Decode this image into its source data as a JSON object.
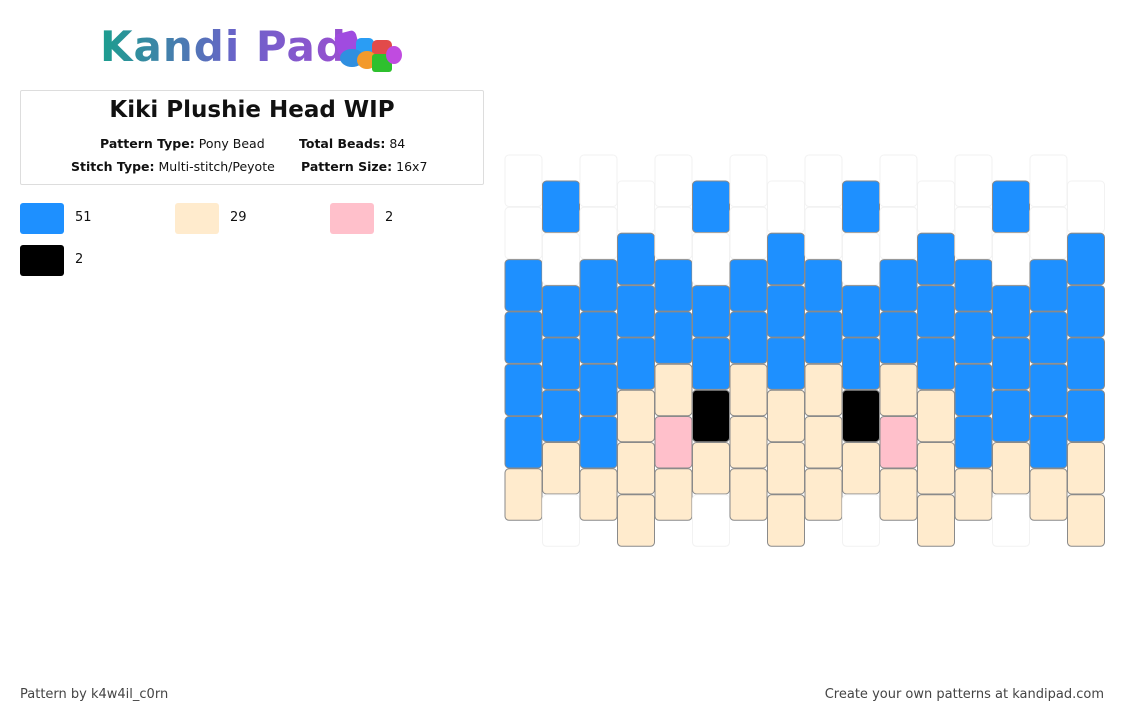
{
  "logo": "Kandi Pad",
  "title": "Kiki Plushie Head WIP",
  "info": [
    {
      "label": "Pattern Type:",
      "value": "Pony Bead"
    },
    {
      "label": "Total Beads:",
      "value": 84
    },
    {
      "label": "Stitch Type:",
      "value": "Multi-stitch/Peyote"
    },
    {
      "label": "Pattern Size:",
      "value": "16x7"
    }
  ],
  "palette": [
    {
      "color": "#1e90ff",
      "count": 51
    },
    {
      "color": "#ffebcd",
      "count": 29
    },
    {
      "color": "#ffc0cb",
      "count": 2
    },
    {
      "color": "#000000",
      "count": 2
    }
  ],
  "beads": [
    [
      null,
      null,
      "#1e90ff",
      "#1e90ff",
      "#1e90ff",
      "#1e90ff",
      "#ffebcd"
    ],
    [
      "#1e90ff",
      null,
      "#1e90ff",
      "#1e90ff",
      "#1e90ff",
      "#ffebcd",
      null
    ],
    [
      null,
      null,
      "#1e90ff",
      "#1e90ff",
      "#1e90ff",
      "#1e90ff",
      "#ffebcd"
    ],
    [
      null,
      "#1e90ff",
      "#1e90ff",
      "#1e90ff",
      "#ffebcd",
      "#ffebcd",
      "#ffebcd"
    ],
    [
      null,
      null,
      "#1e90ff",
      "#1e90ff",
      "#ffebcd",
      "#ffc0cb",
      "#ffebcd"
    ],
    [
      "#1e90ff",
      null,
      "#1e90ff",
      "#1e90ff",
      "#000000",
      "#ffebcd",
      null
    ],
    [
      null,
      null,
      "#1e90ff",
      "#1e90ff",
      "#ffebcd",
      "#ffebcd",
      "#ffebcd"
    ],
    [
      null,
      "#1e90ff",
      "#1e90ff",
      "#1e90ff",
      "#ffebcd",
      "#ffebcd",
      "#ffebcd"
    ],
    [
      null,
      null,
      "#1e90ff",
      "#1e90ff",
      "#ffebcd",
      "#ffebcd",
      "#ffebcd"
    ],
    [
      "#1e90ff",
      null,
      "#1e90ff",
      "#1e90ff",
      "#000000",
      "#ffebcd",
      null
    ],
    [
      null,
      null,
      "#1e90ff",
      "#1e90ff",
      "#ffebcd",
      "#ffc0cb",
      "#ffebcd"
    ],
    [
      null,
      "#1e90ff",
      "#1e90ff",
      "#1e90ff",
      "#ffebcd",
      "#ffebcd",
      "#ffebcd"
    ],
    [
      null,
      null,
      "#1e90ff",
      "#1e90ff",
      "#1e90ff",
      "#1e90ff",
      "#ffebcd"
    ],
    [
      "#1e90ff",
      null,
      "#1e90ff",
      "#1e90ff",
      "#1e90ff",
      "#ffebcd",
      null
    ],
    [
      null,
      null,
      "#1e90ff",
      "#1e90ff",
      "#1e90ff",
      "#1e90ff",
      "#ffebcd"
    ],
    [
      null,
      "#1e90ff",
      "#1e90ff",
      "#1e90ff",
      "#1e90ff",
      "#ffebcd",
      "#ffebcd"
    ]
  ],
  "footer": {
    "author": "Pattern by k4w4il_c0rn",
    "credit": "Create your own patterns at kandipad.com"
  }
}
